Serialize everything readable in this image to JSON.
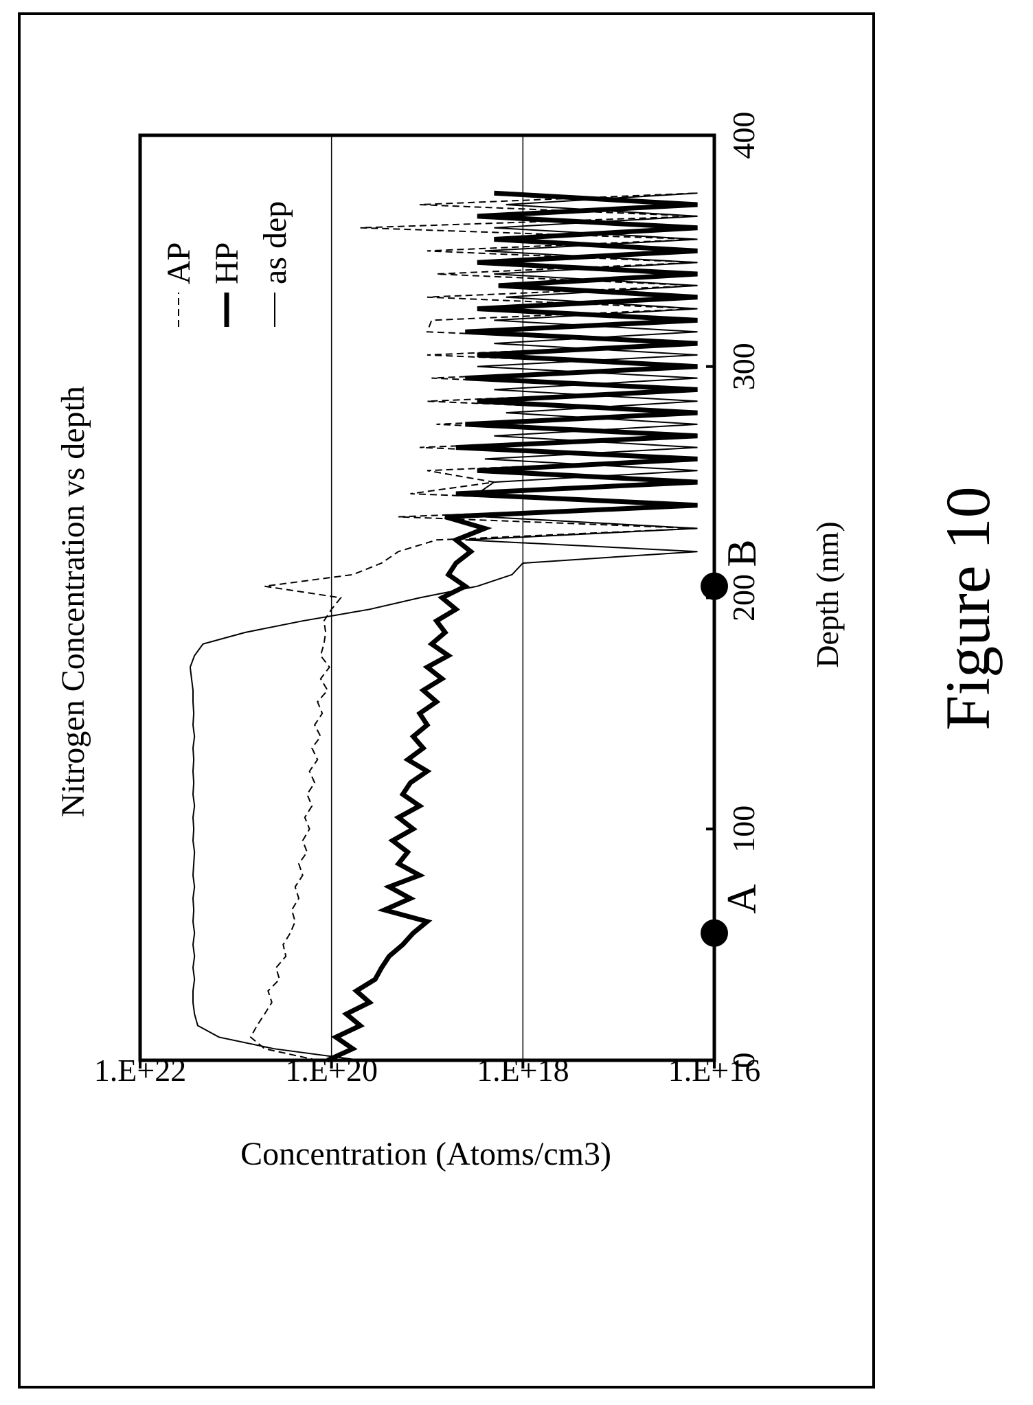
{
  "figure_label": "Figure 10",
  "chart_data": {
    "type": "line",
    "title": "Nitrogen Concentration vs depth",
    "xlabel": "Depth (nm)",
    "ylabel": "Concentration (Atoms/cm3)",
    "xlim": [
      0,
      400
    ],
    "ylim": [
      1e+16,
      1e+22
    ],
    "y_scale": "log",
    "x_ticks": [
      0,
      100,
      200,
      300,
      400
    ],
    "x_tick_labels": [
      "0",
      "100",
      "200",
      "300",
      "400"
    ],
    "y_ticks": [
      1e+16,
      1e+18,
      1e+20,
      1e+22
    ],
    "y_tick_labels": [
      "1.E+16",
      "1.E+18",
      "1.E+20",
      "1.E+22"
    ],
    "gridlines": "horizontal at 1.E+18 and 1.E+20",
    "legend_position": "top-right",
    "annotations": [
      {
        "label": "A",
        "x": 55
      },
      {
        "label": "B",
        "x": 205
      }
    ],
    "series": [
      {
        "name": "AP",
        "line_style": "dashed",
        "x": [
          0,
          5,
          10,
          15,
          20,
          25,
          30,
          35,
          40,
          45,
          50,
          55,
          60,
          65,
          70,
          75,
          80,
          85,
          90,
          95,
          100,
          105,
          110,
          115,
          120,
          125,
          130,
          135,
          140,
          145,
          150,
          155,
          160,
          165,
          170,
          175,
          180,
          185,
          190,
          195,
          200,
          205,
          210,
          215,
          220,
          225,
          230,
          235,
          240,
          245,
          250,
          255,
          260,
          265,
          270,
          275,
          280,
          285,
          290,
          295,
          300,
          305,
          310,
          315,
          320,
          325,
          330,
          335,
          340,
          345,
          350,
          355,
          360,
          365,
          370,
          375
        ],
        "y": [
          1.4e+20,
          5e+20,
          7e+20,
          6e+20,
          5e+20,
          4.2e+20,
          4.6e+20,
          3.5e+20,
          3.8e+20,
          3e+20,
          3.2e+20,
          2.7e+20,
          2.4e+20,
          2.6e+20,
          2.2e+20,
          2.4e+20,
          2e+20,
          2.2e+20,
          1.8e+20,
          2e+20,
          1.7e+20,
          1.9e+20,
          1.6e+20,
          1.8e+20,
          1.5e+20,
          1.7e+20,
          1.4e+20,
          1.6e+20,
          1.3e+20,
          1.5e+20,
          1.25e+20,
          1.4e+20,
          1.1e+20,
          1.3e+20,
          1.05e+20,
          1.3e+20,
          1.2e+20,
          1.15e+20,
          1.2e+20,
          1e+20,
          8e+19,
          5e+20,
          6e+19,
          3e+19,
          2e+19,
          8e+18,
          1.5e+16,
          2e+19,
          1.5e+16,
          1.5e+19,
          2e+18,
          1e+19,
          1.5e+16,
          1.2e+19,
          1.5e+16,
          8e+18,
          1.5e+16,
          1e+19,
          1.5e+16,
          9e+18,
          1.5e+16,
          1e+19,
          1.5e+16,
          1e+19,
          9e+18,
          1.5e+16,
          1e+19,
          1.5e+16,
          8e+18,
          1.5e+16,
          1e+19,
          1.5e+16,
          5e+19,
          1.5e+16,
          1.2e+19,
          1.5e+16
        ]
      },
      {
        "name": "HP",
        "line_style": "thick",
        "x": [
          0,
          5,
          10,
          15,
          20,
          25,
          30,
          35,
          40,
          45,
          50,
          55,
          60,
          65,
          70,
          75,
          80,
          85,
          90,
          95,
          100,
          105,
          110,
          115,
          120,
          125,
          130,
          135,
          140,
          145,
          150,
          155,
          160,
          165,
          170,
          175,
          180,
          185,
          190,
          195,
          200,
          205,
          210,
          215,
          220,
          225,
          230,
          235,
          240,
          245,
          250,
          255,
          260,
          265,
          270,
          275,
          280,
          285,
          290,
          295,
          300,
          305,
          310,
          315,
          320,
          325,
          330,
          335,
          340,
          345,
          350,
          355,
          360,
          365,
          370,
          375
        ],
        "y": [
          1.1e+20,
          6e+19,
          9e+19,
          5e+19,
          7e+19,
          4e+19,
          5.5e+19,
          3.5e+19,
          3e+19,
          2.5e+19,
          1.8e+19,
          1.4e+19,
          1e+19,
          2.8e+19,
          1.5e+19,
          2.5e+19,
          1.2e+19,
          2e+19,
          1.6e+19,
          2.3e+19,
          1.4e+19,
          2e+19,
          1.2e+19,
          1.8e+19,
          1.5e+19,
          1e+19,
          1.6e+19,
          1.1e+19,
          1.4e+19,
          1e+19,
          1.2e+19,
          8e+18,
          1.1e+19,
          7e+18,
          1e+19,
          6e+18,
          9e+18,
          6.5e+18,
          8e+18,
          5e+18,
          7e+18,
          4e+18,
          6e+18,
          5e+18,
          3.5e+18,
          5e+18,
          2.5e+18,
          6.5e+18,
          1.5e+16,
          5e+18,
          1.5e+16,
          3e+18,
          1.5e+16,
          5e+18,
          1.5e+16,
          4e+18,
          1.5e+16,
          3e+18,
          1.5e+16,
          4e+18,
          1.5e+16,
          3e+18,
          1.5e+16,
          4e+18,
          1.5e+16,
          3e+18,
          1.5e+16,
          1.8e+18,
          1.5e+16,
          3e+18,
          1.5e+16,
          2e+18,
          1.5e+16,
          3e+18,
          1.5e+16,
          2e+18
        ]
      },
      {
        "name": "as dep",
        "line_style": "thin",
        "x": [
          0,
          5,
          10,
          15,
          20,
          25,
          30,
          35,
          40,
          45,
          50,
          55,
          60,
          65,
          70,
          75,
          80,
          85,
          90,
          95,
          100,
          105,
          110,
          115,
          120,
          125,
          130,
          135,
          140,
          145,
          150,
          155,
          160,
          165,
          170,
          175,
          180,
          185,
          190,
          195,
          200,
          205,
          210,
          215,
          220,
          225,
          230,
          235,
          240,
          245,
          250,
          255,
          260,
          265,
          270,
          275,
          280,
          285,
          290,
          295,
          300,
          305,
          310,
          315,
          320,
          325,
          330,
          335,
          340,
          345,
          350,
          355,
          360,
          365,
          370,
          375
        ],
        "y": [
          5e+19,
          4e+20,
          1.5e+21,
          2.5e+21,
          2.7e+21,
          2.8e+21,
          2.8e+21,
          2.7e+21,
          2.8e+21,
          2.7e+21,
          2.8e+21,
          2.7e+21,
          2.8e+21,
          2.75e+21,
          2.8e+21,
          2.7e+21,
          2.8e+21,
          2.75e+21,
          2.7e+21,
          2.8e+21,
          2.75e+21,
          2.8e+21,
          2.7e+21,
          2.8e+21,
          2.75e+21,
          2.8e+21,
          2.75e+21,
          2.8e+21,
          2.7e+21,
          2.8e+21,
          2.75e+21,
          2.8e+21,
          2.8e+21,
          2.9e+21,
          3e+21,
          2.7e+21,
          2.2e+21,
          8e+20,
          2e+20,
          4e+19,
          1.2e+19,
          3e+18,
          1.3e+18,
          1e+18,
          1.5e+16,
          4e+18,
          1.5e+16,
          2.5e+18,
          1.5e+16,
          3e+18,
          2e+18,
          1.5e+16,
          2.5e+18,
          1.5e+16,
          2e+18,
          1.5e+16,
          1.5e+18,
          1.5e+16,
          2e+18,
          1.5e+16,
          3e+18,
          1.5e+16,
          2e+18,
          1.5e+16,
          2e+18,
          1.5e+16,
          1.5e+18,
          1.5e+16,
          2e+18,
          1.5e+16,
          2.5e+18,
          1.5e+16,
          2e+18,
          1.5e+16,
          1.5e+18,
          1.5e+16
        ]
      }
    ]
  }
}
